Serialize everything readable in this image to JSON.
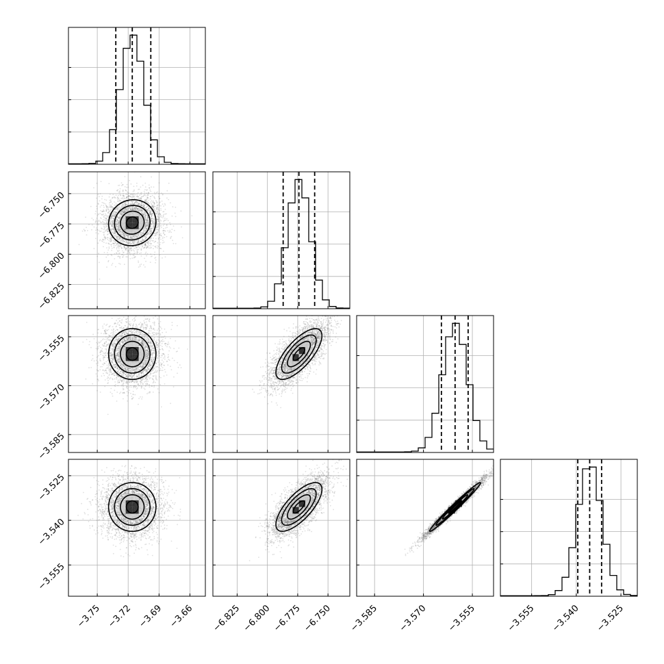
{
  "chart_data": {
    "type": "corner",
    "parameters": [
      {
        "index": 0,
        "median": -3.716,
        "quantiles": [
          -3.732,
          -3.716,
          -3.698
        ],
        "sigma": 0.0115,
        "range": [
          -3.778,
          -3.645
        ],
        "ticks": [
          {
            "v": -3.75,
            "t": "−3.75"
          },
          {
            "v": -3.72,
            "t": "−3.72"
          },
          {
            "v": -3.69,
            "t": "−3.69"
          },
          {
            "v": -3.66,
            "t": "−3.66"
          }
        ]
      },
      {
        "index": 1,
        "median": -6.774,
        "quantiles": [
          -6.787,
          -6.774,
          -6.761
        ],
        "sigma": 0.0095,
        "range": [
          -6.845,
          -6.732
        ],
        "ticks": [
          {
            "v": -6.825,
            "t": "−6.825"
          },
          {
            "v": -6.8,
            "t": "−6.800"
          },
          {
            "v": -6.775,
            "t": "−6.775"
          },
          {
            "v": -6.75,
            "t": "−6.750"
          }
        ]
      },
      {
        "index": 2,
        "median": -3.5603,
        "quantiles": [
          -3.5645,
          -3.5603,
          -3.5563
        ],
        "sigma": 0.0039,
        "range": [
          -3.5905,
          -3.5485
        ],
        "ticks": [
          {
            "v": -3.585,
            "t": "−3.585"
          },
          {
            "v": -3.57,
            "t": "−3.570"
          },
          {
            "v": -3.555,
            "t": "−3.555"
          }
        ]
      },
      {
        "index": 3,
        "median": -3.5355,
        "quantiles": [
          -3.5395,
          -3.5355,
          -3.5315
        ],
        "sigma": 0.0041,
        "range": [
          -3.5655,
          -3.5195
        ],
        "ticks": [
          {
            "v": -3.555,
            "t": "−3.555"
          },
          {
            "v": -3.54,
            "t": "−3.540"
          },
          {
            "v": -3.525,
            "t": "−3.525"
          }
        ]
      }
    ],
    "correlations": [
      {
        "pair": [
          1,
          0
        ],
        "rho": 0.05
      },
      {
        "pair": [
          2,
          0
        ],
        "rho": 0.0
      },
      {
        "pair": [
          2,
          1
        ],
        "rho": 0.72
      },
      {
        "pair": [
          3,
          0
        ],
        "rho": 0.0
      },
      {
        "pair": [
          3,
          1
        ],
        "rho": 0.72
      },
      {
        "pair": [
          3,
          2
        ],
        "rho": 0.985
      }
    ],
    "histogram_bins": 20,
    "sample_points": 3500,
    "contour_levels_sigma": [
      0.5,
      1.0,
      1.5,
      2.0
    ],
    "quantile_levels": [
      0.16,
      0.5,
      0.84
    ],
    "grid": true,
    "legend": "none"
  }
}
